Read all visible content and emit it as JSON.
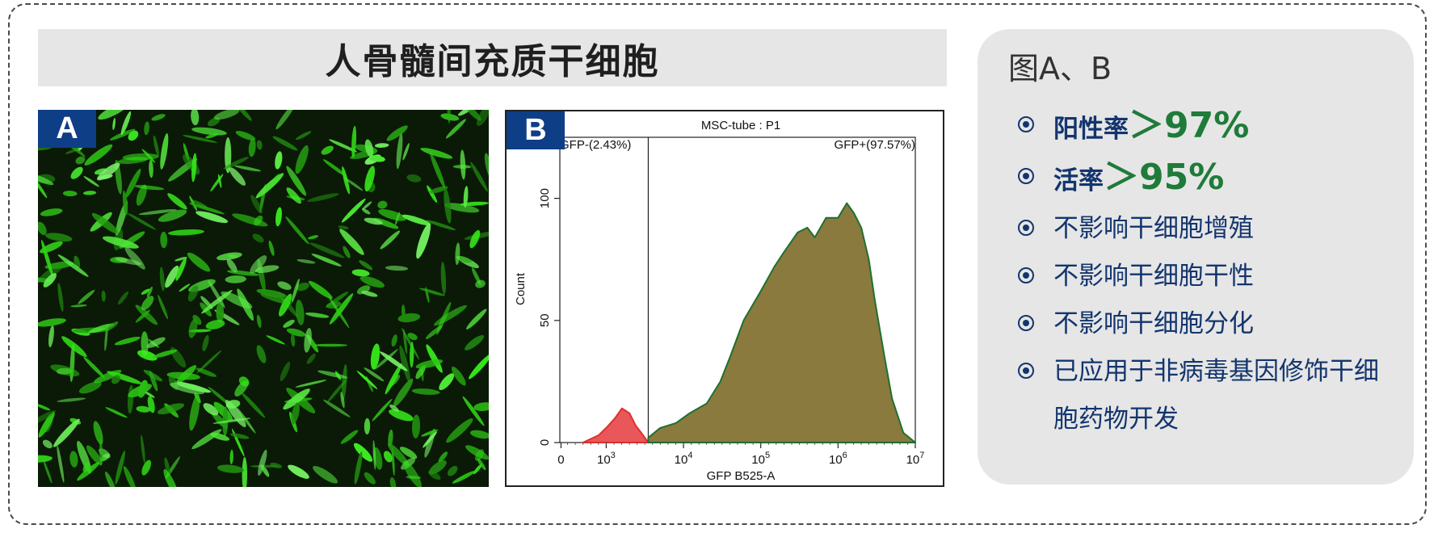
{
  "title": "人骨髓间充质干细胞",
  "panel_a": {
    "label": "A"
  },
  "panel_b": {
    "label": "B",
    "chart_data": {
      "type": "area",
      "title": "MSC-tube : P1",
      "xlabel": "GFP B525-A",
      "ylabel": "Count",
      "x_scale": "log",
      "x_ticks": [
        "0",
        "10",
        "10",
        "10",
        "10",
        "10"
      ],
      "x_tick_exponents": [
        "",
        "3",
        "4",
        "5",
        "6",
        "7"
      ],
      "y_ticks": [
        "0",
        "50",
        "100"
      ],
      "ylim": [
        0,
        125
      ],
      "gate_negative": "GFP-(2.43%)",
      "gate_positive": "GFP+(97.57%)",
      "series": [
        {
          "color": "#d9322c",
          "fill": "#e9575a",
          "points": [
            [
              500,
              0
            ],
            [
              800,
              3
            ],
            [
              1000,
              6
            ],
            [
              1300,
              10
            ],
            [
              1600,
              14
            ],
            [
              2000,
              12
            ],
            [
              2400,
              7
            ],
            [
              3000,
              3
            ],
            [
              3500,
              0
            ]
          ]
        },
        {
          "color": "#1f6f2e",
          "fill": "#8a7a3e",
          "points": [
            [
              3500,
              2
            ],
            [
              5000,
              6
            ],
            [
              8000,
              8
            ],
            [
              12000,
              12
            ],
            [
              20000,
              16
            ],
            [
              30000,
              25
            ],
            [
              40000,
              35
            ],
            [
              60000,
              50
            ],
            [
              100000,
              62
            ],
            [
              150000,
              72
            ],
            [
              200000,
              78
            ],
            [
              300000,
              86
            ],
            [
              400000,
              88
            ],
            [
              500000,
              84
            ],
            [
              700000,
              92
            ],
            [
              1000000,
              92
            ],
            [
              1300000,
              98
            ],
            [
              1600000,
              94
            ],
            [
              2000000,
              88
            ],
            [
              2500000,
              75
            ],
            [
              3000000,
              58
            ],
            [
              4000000,
              35
            ],
            [
              5000000,
              18
            ],
            [
              7000000,
              4
            ],
            [
              10000000,
              0
            ]
          ]
        }
      ]
    }
  },
  "info": {
    "title": "图A、B",
    "items": [
      {
        "label": "阳性率",
        "value": "＞97%"
      },
      {
        "label": "活率",
        "value": "＞95%"
      },
      {
        "label": "不影响干细胞增殖"
      },
      {
        "label": "不影响干细胞干性"
      },
      {
        "label": "不影响干细胞分化"
      },
      {
        "label": "已应用于非病毒基因修饰干细胞药物开发"
      }
    ]
  }
}
